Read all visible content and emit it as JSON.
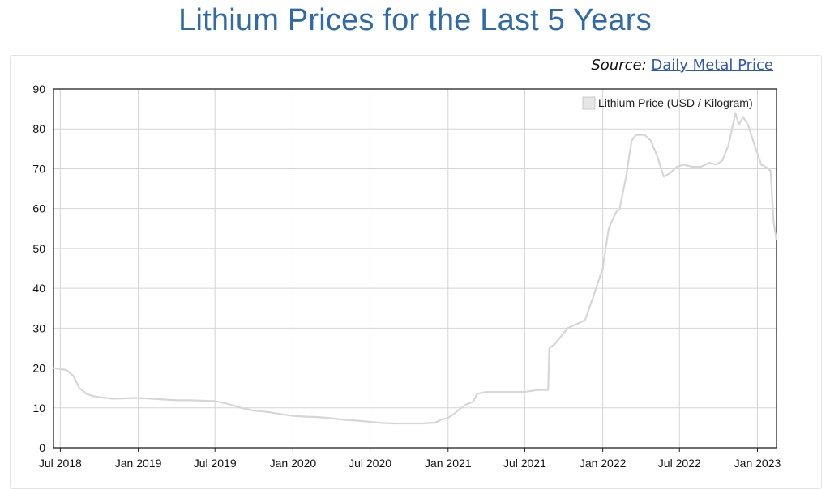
{
  "page": {
    "title": "Lithium Prices for the Last 5 Years",
    "source_prefix": "Source:",
    "source_link": "Daily Metal Price"
  },
  "colors": {
    "title": "#2f6ba8",
    "line": "#d6d6d6",
    "grid": "#d4d4d4",
    "link": "#2f57b5"
  },
  "chart_data": {
    "type": "line",
    "title": "",
    "xlabel": "",
    "ylabel": "",
    "ylim": [
      0,
      90
    ],
    "yticks": [
      0,
      10,
      20,
      30,
      40,
      50,
      60,
      70,
      80,
      90
    ],
    "grid": true,
    "legend_position": "top-right",
    "x_tick_labels": [
      {
        "date": "2018-07-01",
        "label": "Jul 2018"
      },
      {
        "date": "2019-01-01",
        "label": "Jan 2019"
      },
      {
        "date": "2019-07-01",
        "label": "Jul 2019"
      },
      {
        "date": "2020-01-01",
        "label": "Jan 2020"
      },
      {
        "date": "2020-07-01",
        "label": "Jul 2020"
      },
      {
        "date": "2021-01-01",
        "label": "Jan 2021"
      },
      {
        "date": "2021-07-01",
        "label": "Jul 2021"
      },
      {
        "date": "2022-01-01",
        "label": "Jan 2022"
      },
      {
        "date": "2022-07-01",
        "label": "Jul 2022"
      },
      {
        "date": "2023-01-01",
        "label": "Jan 2023"
      }
    ],
    "x_range": [
      "2018-06-15",
      "2023-02-15"
    ],
    "series": [
      {
        "name": "Lithium Price (USD / Kilogram)",
        "points": [
          [
            "2018-06-15",
            20
          ],
          [
            "2018-07-15",
            19.5
          ],
          [
            "2018-08-01",
            18
          ],
          [
            "2018-08-15",
            15
          ],
          [
            "2018-09-01",
            13.5
          ],
          [
            "2018-09-15",
            13
          ],
          [
            "2018-10-01",
            12.7
          ],
          [
            "2018-11-01",
            12.3
          ],
          [
            "2018-12-01",
            12.4
          ],
          [
            "2019-01-01",
            12.5
          ],
          [
            "2019-02-01",
            12.3
          ],
          [
            "2019-03-01",
            12.1
          ],
          [
            "2019-04-01",
            11.9
          ],
          [
            "2019-05-01",
            11.9
          ],
          [
            "2019-06-01",
            11.8
          ],
          [
            "2019-07-01",
            11.7
          ],
          [
            "2019-08-01",
            11.0
          ],
          [
            "2019-09-01",
            10.0
          ],
          [
            "2019-10-01",
            9.3
          ],
          [
            "2019-11-01",
            9.0
          ],
          [
            "2019-12-01",
            8.5
          ],
          [
            "2020-01-01",
            8.0
          ],
          [
            "2020-02-01",
            7.8
          ],
          [
            "2020-03-01",
            7.7
          ],
          [
            "2020-04-01",
            7.4
          ],
          [
            "2020-05-01",
            7.0
          ],
          [
            "2020-06-01",
            6.8
          ],
          [
            "2020-07-01",
            6.5
          ],
          [
            "2020-08-01",
            6.2
          ],
          [
            "2020-09-01",
            6.1
          ],
          [
            "2020-10-01",
            6.1
          ],
          [
            "2020-11-01",
            6.1
          ],
          [
            "2020-12-01",
            6.3
          ],
          [
            "2020-12-15",
            7.0
          ],
          [
            "2021-01-01",
            7.5
          ],
          [
            "2021-01-15",
            8.5
          ],
          [
            "2021-02-01",
            10.0
          ],
          [
            "2021-02-15",
            11.0
          ],
          [
            "2021-03-01",
            11.5
          ],
          [
            "2021-03-10",
            13.5
          ],
          [
            "2021-04-01",
            14.0
          ],
          [
            "2021-05-01",
            14.0
          ],
          [
            "2021-06-01",
            14.0
          ],
          [
            "2021-07-01",
            14.0
          ],
          [
            "2021-08-01",
            14.5
          ],
          [
            "2021-08-25",
            14.5
          ],
          [
            "2021-08-28",
            25.0
          ],
          [
            "2021-09-10",
            26.0
          ],
          [
            "2021-09-25",
            28.0
          ],
          [
            "2021-10-10",
            30.0
          ],
          [
            "2021-11-01",
            31.0
          ],
          [
            "2021-11-20",
            32.0
          ],
          [
            "2021-12-10",
            38.0
          ],
          [
            "2022-01-01",
            45.0
          ],
          [
            "2022-01-15",
            55.0
          ],
          [
            "2022-02-01",
            59.0
          ],
          [
            "2022-02-10",
            60.0
          ],
          [
            "2022-02-25",
            68.0
          ],
          [
            "2022-03-10",
            77.0
          ],
          [
            "2022-03-20",
            78.5
          ],
          [
            "2022-04-10",
            78.5
          ],
          [
            "2022-04-25",
            77.0
          ],
          [
            "2022-05-10",
            73.0
          ],
          [
            "2022-05-25",
            68.0
          ],
          [
            "2022-06-10",
            69.0
          ],
          [
            "2022-06-25",
            70.5
          ],
          [
            "2022-07-10",
            71.0
          ],
          [
            "2022-08-01",
            70.5
          ],
          [
            "2022-08-20",
            70.5
          ],
          [
            "2022-09-10",
            71.5
          ],
          [
            "2022-09-25",
            71.0
          ],
          [
            "2022-10-10",
            72.0
          ],
          [
            "2022-10-25",
            76.0
          ],
          [
            "2022-11-10",
            84.0
          ],
          [
            "2022-11-18",
            81.0
          ],
          [
            "2022-11-28",
            83.0
          ],
          [
            "2022-12-10",
            81.0
          ],
          [
            "2022-12-25",
            76.0
          ],
          [
            "2023-01-10",
            71.0
          ],
          [
            "2023-01-20",
            70.5
          ],
          [
            "2023-02-01",
            69.5
          ],
          [
            "2023-02-08",
            57.0
          ],
          [
            "2023-02-15",
            52.0
          ]
        ]
      }
    ]
  }
}
